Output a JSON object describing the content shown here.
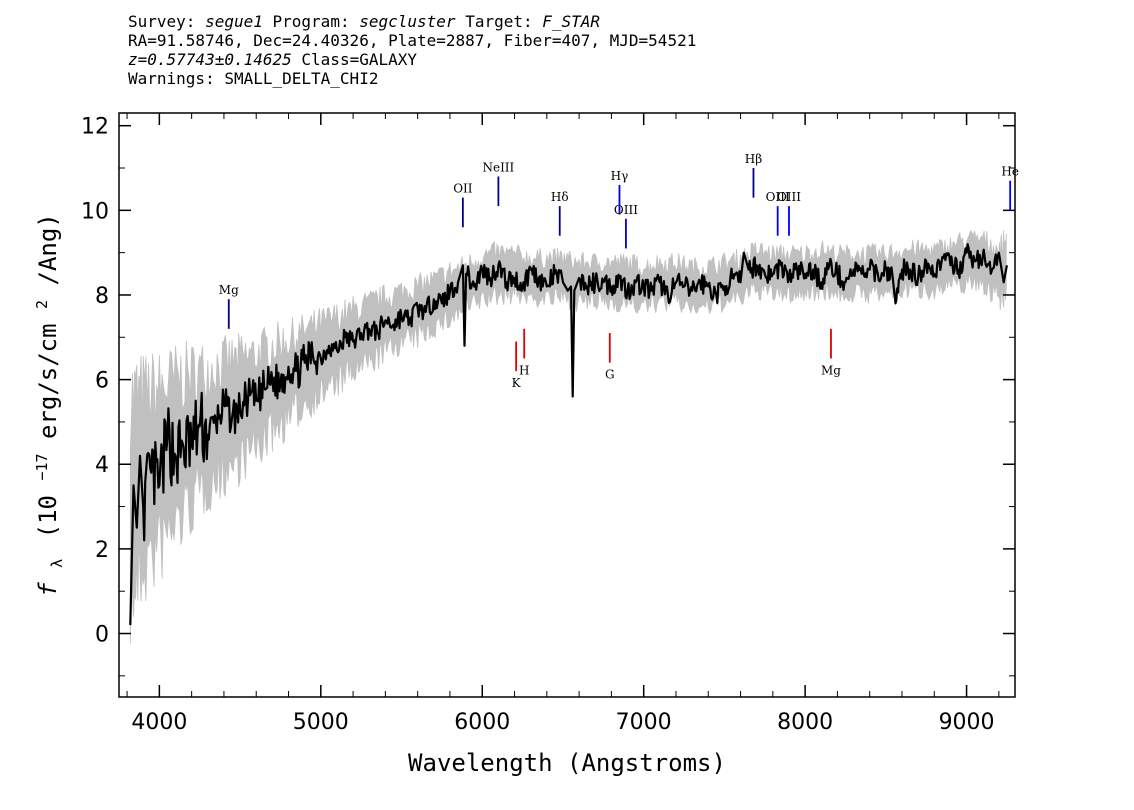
{
  "header": {
    "survey_label": "Survey:",
    "survey": "segue1",
    "program_label": "Program:",
    "program": "segcluster",
    "target_label": "Target:",
    "target": "F_STAR",
    "line2": "RA=91.58746, Dec=24.40326, Plate=2887, Fiber=407, MJD=54521",
    "redshift": "z=0.57743±0.14625",
    "class": "Class=GALAXY",
    "warnings": "Warnings: SMALL_DELTA_CHI2"
  },
  "chart_data": {
    "type": "line",
    "xlabel": "Wavelength (Angstroms)",
    "ylabel_prefix": "f",
    "ylabel_sub": "λ",
    "ylabel_unit": "(10",
    "ylabel_exp": "−17",
    "ylabel_rest": " erg/s/cm",
    "ylabel_exp2": "2",
    "ylabel_tail": "/Ang)",
    "xlim": [
      3750,
      9300
    ],
    "ylim": [
      -1.5,
      12.3
    ],
    "xticks": [
      4000,
      5000,
      6000,
      7000,
      8000,
      9000
    ],
    "yticks": [
      0,
      2,
      4,
      6,
      8,
      10,
      12
    ],
    "series": [
      {
        "role": "error-band",
        "color": "#c0c0c0",
        "x": [
          3820,
          3900,
          4000,
          4100,
          4200,
          4300,
          4400,
          4500,
          4600,
          4700,
          4800,
          4900,
          5000,
          5100,
          5200,
          5300,
          5400,
          5500,
          5600,
          5700,
          5800,
          5900,
          6000,
          6100,
          6200,
          6300,
          6400,
          6500,
          6600,
          6700,
          6800,
          6900,
          7000,
          7100,
          7200,
          7300,
          7400,
          7500,
          7600,
          7700,
          7800,
          7900,
          8000,
          8100,
          8200,
          8300,
          8400,
          8500,
          8600,
          8700,
          8800,
          8900,
          9000,
          9100,
          9200,
          9250
        ],
        "y": [
          3.2,
          3.6,
          3.9,
          4.3,
          4.6,
          4.9,
          5.1,
          5.3,
          5.5,
          5.8,
          6.0,
          6.3,
          6.5,
          6.7,
          6.9,
          7.1,
          7.3,
          7.5,
          7.6,
          7.8,
          8.0,
          8.2,
          8.4,
          8.5,
          8.5,
          8.4,
          8.4,
          8.4,
          8.3,
          8.3,
          8.3,
          8.3,
          8.2,
          8.3,
          8.3,
          8.2,
          8.2,
          8.3,
          8.4,
          8.6,
          8.5,
          8.5,
          8.5,
          8.6,
          8.5,
          8.5,
          8.5,
          8.5,
          8.6,
          8.6,
          8.6,
          8.7,
          8.8,
          8.8,
          8.5,
          8.7
        ],
        "half_width": [
          2.8,
          2.4,
          2.2,
          2.0,
          1.8,
          1.6,
          1.5,
          1.4,
          1.3,
          1.2,
          1.1,
          1.0,
          0.95,
          0.9,
          0.85,
          0.8,
          0.75,
          0.7,
          0.7,
          0.65,
          0.65,
          0.6,
          0.6,
          0.6,
          0.55,
          0.55,
          0.55,
          0.55,
          0.55,
          0.55,
          0.55,
          0.55,
          0.55,
          0.55,
          0.55,
          0.55,
          0.55,
          0.55,
          0.55,
          0.55,
          0.55,
          0.55,
          0.55,
          0.55,
          0.55,
          0.55,
          0.55,
          0.55,
          0.55,
          0.55,
          0.55,
          0.55,
          0.6,
          0.6,
          0.7,
          0.7
        ]
      },
      {
        "role": "flux",
        "color": "#000000",
        "x": [
          3820,
          3840,
          3860,
          3880,
          3900,
          3950,
          4000,
          4050,
          4100,
          4150,
          4200,
          4250,
          4300,
          4350,
          4400,
          4450,
          4500,
          4550,
          4600,
          4650,
          4700,
          4750,
          4800,
          4850,
          4900,
          4950,
          5000,
          5050,
          5100,
          5150,
          5200,
          5250,
          5300,
          5350,
          5400,
          5450,
          5500,
          5550,
          5600,
          5650,
          5700,
          5750,
          5800,
          5850,
          5880,
          5890,
          5900,
          5950,
          6000,
          6050,
          6100,
          6150,
          6200,
          6250,
          6300,
          6350,
          6400,
          6450,
          6500,
          6530,
          6550,
          6560,
          6570,
          6600,
          6650,
          6700,
          6750,
          6800,
          6850,
          6900,
          6950,
          7000,
          7050,
          7100,
          7150,
          7200,
          7250,
          7300,
          7350,
          7400,
          7450,
          7500,
          7550,
          7600,
          7620,
          7650,
          7700,
          7750,
          7800,
          7850,
          7900,
          7950,
          8000,
          8050,
          8100,
          8150,
          8200,
          8250,
          8300,
          8350,
          8400,
          8450,
          8500,
          8540,
          8560,
          8600,
          8650,
          8700,
          8750,
          8800,
          8850,
          8900,
          8950,
          9000,
          9050,
          9100,
          9150,
          9200,
          9230,
          9250
        ],
        "y": [
          0.2,
          3.5,
          2.5,
          4.2,
          3.0,
          3.8,
          3.5,
          4.6,
          4.2,
          4.4,
          4.5,
          4.9,
          4.7,
          5.0,
          5.4,
          5.1,
          5.3,
          5.6,
          5.5,
          5.8,
          6.0,
          5.9,
          6.3,
          6.2,
          6.4,
          6.6,
          6.5,
          6.8,
          6.7,
          7.0,
          6.9,
          7.1,
          7.2,
          7.1,
          7.4,
          7.3,
          7.5,
          7.4,
          7.7,
          7.6,
          7.9,
          7.8,
          8.1,
          8.3,
          8.7,
          6.8,
          8.5,
          8.2,
          8.6,
          8.4,
          8.7,
          8.3,
          8.4,
          8.2,
          8.6,
          8.4,
          8.2,
          8.5,
          8.3,
          8.1,
          8.2,
          5.6,
          8.1,
          8.4,
          8.2,
          8.3,
          8.3,
          8.2,
          8.4,
          8.1,
          8.3,
          8.2,
          8.1,
          8.3,
          8.0,
          8.3,
          8.2,
          8.1,
          8.3,
          8.2,
          8.0,
          8.2,
          8.4,
          8.3,
          9.0,
          8.6,
          8.7,
          8.5,
          8.5,
          8.7,
          8.4,
          8.6,
          8.5,
          8.6,
          8.3,
          8.7,
          8.5,
          8.3,
          8.6,
          8.5,
          8.6,
          8.5,
          8.6,
          8.5,
          7.8,
          8.6,
          8.6,
          8.4,
          8.8,
          8.5,
          8.9,
          8.7,
          8.6,
          9.0,
          8.8,
          8.9,
          8.5,
          9.0,
          8.3,
          8.7
        ]
      }
    ],
    "emission_lines": [
      {
        "label": "Mg",
        "x": 4430,
        "y_low": 7.2,
        "y_high": 7.9,
        "color": "#00008b"
      },
      {
        "label": "OII",
        "x": 5880,
        "y_low": 9.6,
        "y_high": 10.3,
        "color": "#00008b"
      },
      {
        "label": "NeIII",
        "x": 6100,
        "y_low": 10.1,
        "y_high": 10.8,
        "color": "#00008b"
      },
      {
        "label": "Hδ",
        "x": 6480,
        "y_low": 9.4,
        "y_high": 10.1,
        "color": "#00008b"
      },
      {
        "label": "Hγ",
        "x": 6850,
        "y_low": 9.9,
        "y_high": 10.6,
        "color": "#0000cd"
      },
      {
        "label": "OIII",
        "x": 6890,
        "y_low": 9.1,
        "y_high": 9.8,
        "color": "#0000cd"
      },
      {
        "label": "Hβ",
        "x": 7680,
        "y_low": 10.3,
        "y_high": 11.0,
        "color": "#00008b"
      },
      {
        "label": "OIII",
        "x": 7830,
        "y_low": 9.4,
        "y_high": 10.1,
        "color": "#0000ff"
      },
      {
        "label": "OIII",
        "x": 7900,
        "y_low": 9.4,
        "y_high": 10.1,
        "color": "#0000ff"
      },
      {
        "label": "He",
        "x": 9270,
        "y_low": 10.0,
        "y_high": 10.7,
        "color": "#0000ff"
      }
    ],
    "absorption_lines": [
      {
        "label": "K",
        "x": 6210,
        "y_low": 6.2,
        "y_high": 6.9,
        "color": "#dd0000"
      },
      {
        "label": "H",
        "x": 6260,
        "y_low": 6.5,
        "y_high": 7.2,
        "color": "#dd0000"
      },
      {
        "label": "G",
        "x": 6790,
        "y_low": 6.4,
        "y_high": 7.1,
        "color": "#dd0000"
      },
      {
        "label": "Mg",
        "x": 8160,
        "y_low": 6.5,
        "y_high": 7.2,
        "color": "#dd0000"
      }
    ]
  }
}
